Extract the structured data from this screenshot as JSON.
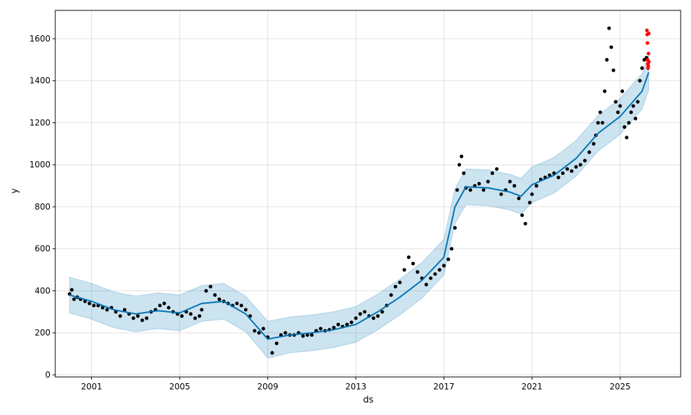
{
  "chart_data": {
    "type": "scatter",
    "title": "",
    "xlabel": "ds",
    "ylabel": "y",
    "xlim": [
      1999.35,
      2027.75
    ],
    "ylim": [
      -10,
      1735
    ],
    "x_ticks": [
      2001,
      2005,
      2009,
      2013,
      2017,
      2021,
      2025
    ],
    "y_ticks": [
      0,
      200,
      400,
      600,
      800,
      1000,
      1200,
      1400,
      1600
    ],
    "grid": true,
    "legend": "none",
    "colors": {
      "observed": "#000000",
      "recent_observed": "#ff0000",
      "forecast": "#0072B2",
      "interval": "#0072B2"
    },
    "series": [
      {
        "kind": "observed",
        "x": [
          2000.0,
          2000.1,
          2000.2,
          2000.35,
          2000.5,
          2000.7,
          2000.9,
          2001.1,
          2001.3,
          2001.5,
          2001.7,
          2001.9,
          2002.1,
          2002.3,
          2002.5,
          2002.7,
          2002.9,
          2003.1,
          2003.3,
          2003.5,
          2003.7,
          2003.9,
          2004.1,
          2004.3,
          2004.5,
          2004.7,
          2004.9,
          2005.1,
          2005.3,
          2005.5,
          2005.7,
          2005.9,
          2006.0,
          2006.2,
          2006.4,
          2006.6,
          2006.8,
          2007.0,
          2007.2,
          2007.4,
          2007.6,
          2007.8,
          2008.0,
          2008.2,
          2008.4,
          2008.6,
          2008.8,
          2009.0,
          2009.2,
          2009.4,
          2009.6,
          2009.8,
          2010.0,
          2010.2,
          2010.4,
          2010.6,
          2010.8,
          2011.0,
          2011.2,
          2011.4,
          2011.6,
          2011.8,
          2012.0,
          2012.2,
          2012.4,
          2012.6,
          2012.8,
          2013.0,
          2013.2,
          2013.4,
          2013.6,
          2013.8,
          2014.0,
          2014.2,
          2014.4,
          2014.6,
          2014.8,
          2015.0,
          2015.2,
          2015.4,
          2015.6,
          2015.8,
          2016.0,
          2016.2,
          2016.4,
          2016.6,
          2016.8,
          2017.0,
          2017.2,
          2017.35,
          2017.5,
          2017.6,
          2017.7,
          2017.8,
          2017.9,
          2018.0,
          2018.2,
          2018.4,
          2018.6,
          2018.8,
          2019.0,
          2019.2,
          2019.4,
          2019.6,
          2019.8,
          2020.0,
          2020.2,
          2020.4,
          2020.55,
          2020.7,
          2020.9,
          2021.0,
          2021.2,
          2021.4,
          2021.6,
          2021.8,
          2022.0,
          2022.2,
          2022.4,
          2022.6,
          2022.8,
          2023.0,
          2023.2,
          2023.4,
          2023.6,
          2023.8,
          2023.9,
          2024.0,
          2024.1,
          2024.2,
          2024.3,
          2024.4,
          2024.5,
          2024.6,
          2024.7,
          2024.8,
          2024.9,
          2025.0,
          2025.1,
          2025.2,
          2025.3,
          2025.4,
          2025.5,
          2025.6,
          2025.7,
          2025.8,
          2025.9,
          2026.0,
          2026.1,
          2026.2
        ],
        "y": [
          385,
          405,
          360,
          370,
          360,
          350,
          340,
          330,
          330,
          320,
          310,
          320,
          300,
          280,
          310,
          290,
          270,
          280,
          260,
          270,
          300,
          310,
          330,
          340,
          320,
          300,
          290,
          280,
          300,
          290,
          270,
          280,
          310,
          400,
          420,
          380,
          360,
          350,
          340,
          330,
          340,
          330,
          310,
          280,
          210,
          200,
          220,
          180,
          105,
          150,
          190,
          200,
          190,
          190,
          200,
          185,
          190,
          190,
          210,
          220,
          210,
          215,
          225,
          240,
          230,
          240,
          250,
          270,
          290,
          300,
          280,
          270,
          280,
          300,
          330,
          380,
          420,
          440,
          500,
          560,
          530,
          490,
          460,
          430,
          460,
          480,
          500,
          520,
          550,
          600,
          700,
          880,
          1000,
          1040,
          960,
          890,
          880,
          900,
          910,
          880,
          920,
          960,
          980,
          860,
          880,
          920,
          900,
          840,
          760,
          720,
          820,
          860,
          900,
          930,
          940,
          950,
          960,
          940,
          960,
          980,
          970,
          990,
          1000,
          1020,
          1060,
          1100,
          1140,
          1200,
          1250,
          1200,
          1350,
          1500,
          1650,
          1560,
          1450,
          1300,
          1250,
          1280,
          1350,
          1180,
          1130,
          1200,
          1250,
          1280,
          1220,
          1300,
          1400,
          1460,
          1500,
          1510
        ]
      },
      {
        "kind": "recent_observed",
        "x": [
          2026.22,
          2026.23,
          2026.24,
          2026.25,
          2026.26,
          2026.27,
          2026.28,
          2026.29,
          2026.3,
          2026.31
        ],
        "y": [
          1640,
          1620,
          1580,
          1500,
          1480,
          1460,
          1470,
          1530,
          1625,
          1490
        ]
      },
      {
        "kind": "forecast",
        "x": [
          2000,
          2001,
          2002,
          2003,
          2004,
          2005,
          2006,
          2007,
          2008,
          2009,
          2010,
          2011,
          2012,
          2013,
          2014,
          2015,
          2016,
          2017,
          2017.5,
          2018,
          2019,
          2020,
          2020.5,
          2021,
          2022,
          2023,
          2024,
          2025,
          2026,
          2026.3
        ],
        "yhat": [
          380,
          350,
          310,
          290,
          305,
          295,
          340,
          350,
          290,
          170,
          190,
          200,
          215,
          240,
          300,
          370,
          450,
          560,
          800,
          895,
          890,
          870,
          850,
          905,
          950,
          1030,
          1150,
          1230,
          1350,
          1440
        ],
        "yhat_lower": [
          295,
          265,
          225,
          205,
          220,
          210,
          255,
          265,
          205,
          80,
          105,
          115,
          130,
          155,
          215,
          285,
          365,
          475,
          720,
          810,
          805,
          785,
          765,
          820,
          865,
          945,
          1065,
          1145,
          1265,
          1355
        ],
        "yhat_upper": [
          465,
          435,
          395,
          375,
          390,
          380,
          425,
          435,
          375,
          255,
          275,
          285,
          300,
          325,
          385,
          455,
          535,
          645,
          885,
          980,
          975,
          955,
          935,
          990,
          1035,
          1115,
          1235,
          1315,
          1435,
          1525
        ]
      }
    ]
  }
}
